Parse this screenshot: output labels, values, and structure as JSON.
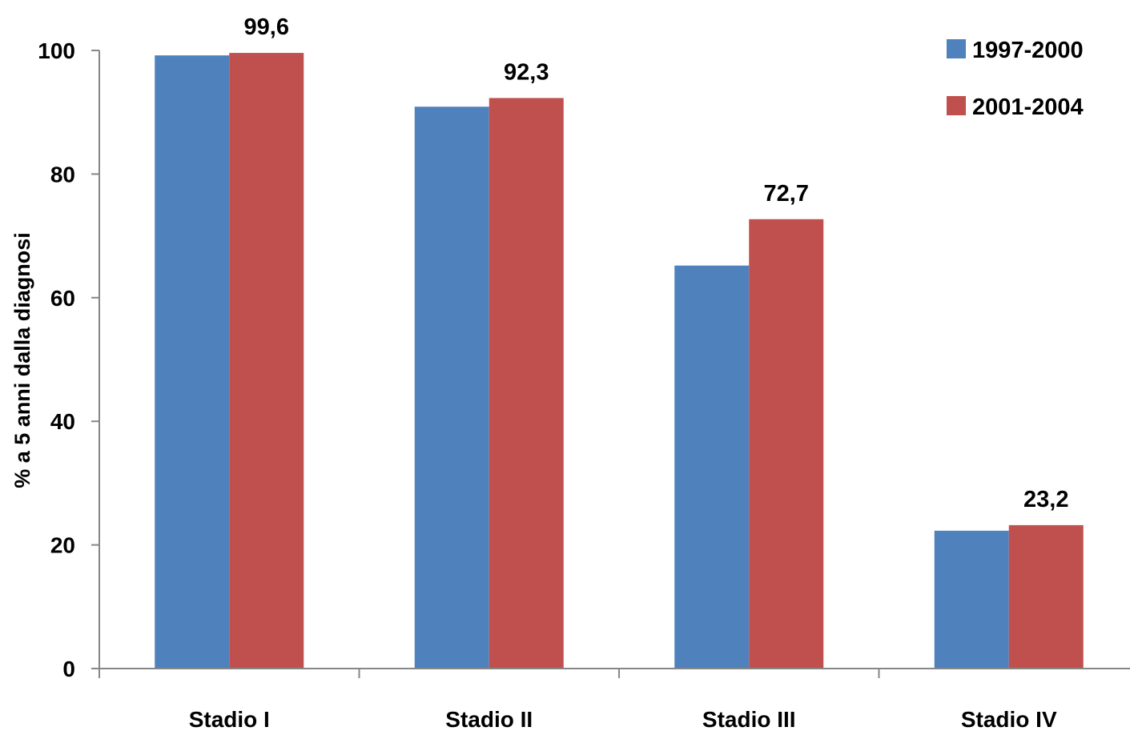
{
  "chart_data": {
    "type": "bar",
    "title": "",
    "xlabel": "",
    "ylabel": "% a 5 anni dalla diagnosi",
    "ylim": [
      0,
      100
    ],
    "yticks": [
      0,
      20,
      40,
      60,
      80,
      100
    ],
    "grid": false,
    "legend_position": "top-right",
    "categories": [
      "Stadio I",
      "Stadio II",
      "Stadio III",
      "Stadio IV"
    ],
    "series": [
      {
        "name": "1997-2000",
        "color": "#4F81BD",
        "values": [
          99.2,
          90.9,
          65.2,
          22.3
        ],
        "data_labels": [
          "",
          "",
          "",
          ""
        ]
      },
      {
        "name": "2001-2004",
        "color": "#C0504D",
        "values": [
          99.6,
          92.3,
          72.7,
          23.2
        ],
        "data_labels": [
          "99,6",
          "92,3",
          "72,7",
          "23,2"
        ]
      }
    ]
  }
}
